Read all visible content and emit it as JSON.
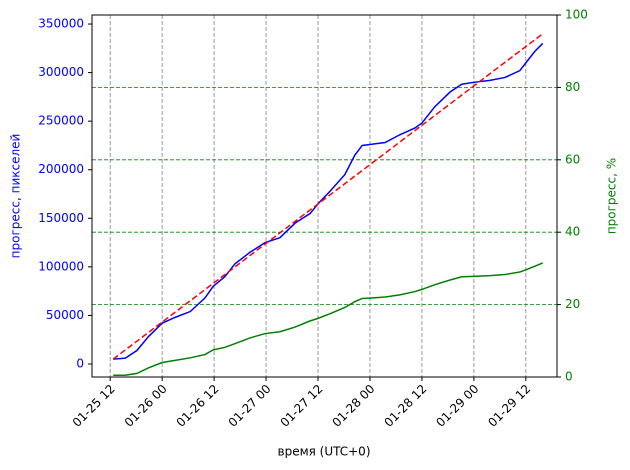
{
  "chart_data": {
    "type": "line",
    "xlabel": "время (UTC+0)",
    "ylabel": "прогресс, пикселей",
    "y2label": "прогресс, %",
    "ylabel_color": "blue",
    "y2label_color": "green",
    "xlim": [
      7.8,
      115.2
    ],
    "xticks": [
      {
        "value": 12,
        "label": "01-25 12"
      },
      {
        "value": 24,
        "label": "01-26 00"
      },
      {
        "value": 36,
        "label": "01-26 12"
      },
      {
        "value": 48,
        "label": "01-27 00"
      },
      {
        "value": 60,
        "label": "01-27 12"
      },
      {
        "value": 72,
        "label": "01-28 00"
      },
      {
        "value": 84,
        "label": "01-28 12"
      },
      {
        "value": 96,
        "label": "01-29 00"
      },
      {
        "value": 108,
        "label": "01-29 12"
      }
    ],
    "ylim": [
      -13400,
      359300
    ],
    "yticks": [
      0,
      50000,
      100000,
      150000,
      200000,
      250000,
      300000,
      350000
    ],
    "y2lim": [
      0,
      100
    ],
    "y2ticks": [
      0,
      20,
      40,
      60,
      80,
      100
    ],
    "x_grid_color": "gray",
    "y2_grid_color": "green",
    "series": [
      {
        "color": "blue",
        "dashed": false,
        "x": [
          12.7,
          15.5,
          18.2,
          20.8,
          24,
          27,
          30.5,
          33.9,
          35.8,
          38.5,
          40.8,
          44.3,
          47.8,
          51.2,
          54.7,
          58.2,
          60,
          62.8,
          66.2,
          68.5,
          70.2,
          72,
          75.5,
          78.9,
          82.4,
          84,
          87,
          90.5,
          93.2,
          96,
          99.7,
          103.2,
          106.6,
          108,
          110.1,
          111.9
        ],
        "values": [
          5000,
          6000,
          14000,
          28000,
          42000,
          48000,
          54000,
          68000,
          80000,
          90000,
          103000,
          115000,
          125000,
          130000,
          145000,
          155000,
          165000,
          178000,
          195000,
          215000,
          225000,
          226000,
          228000,
          236000,
          243000,
          248000,
          265000,
          280000,
          288000,
          290000,
          292000,
          295000,
          302000,
          310000,
          322000,
          330000
        ]
      },
      {
        "color": "red",
        "dashed": true,
        "x": [
          12.7,
          111.9
        ],
        "values": [
          5000,
          340000
        ]
      },
      {
        "color": "green",
        "dashed": false,
        "axis": "y2",
        "x": [
          12.7,
          15.5,
          18.2,
          20.8,
          24,
          27,
          30.5,
          33.9,
          35.8,
          38.5,
          40.8,
          44.3,
          47.8,
          51.2,
          54.7,
          58.2,
          60,
          62.8,
          66.2,
          68.5,
          70.2,
          72,
          75.5,
          78.9,
          82.4,
          84,
          87,
          90.5,
          93.2,
          96,
          99.7,
          103.2,
          106.6,
          108,
          110.1,
          111.9
        ],
        "values": [
          0.5,
          0.5,
          1,
          2.5,
          4,
          4.6,
          5.3,
          6.2,
          7.5,
          8.2,
          9.2,
          10.8,
          12,
          12.5,
          13.8,
          15.5,
          16.2,
          17.5,
          19.2,
          20.8,
          21.7,
          21.8,
          22.1,
          22.7,
          23.6,
          24.2,
          25.5,
          26.8,
          27.7,
          27.8,
          28,
          28.3,
          29,
          29.6,
          30.6,
          31.5
        ]
      }
    ]
  }
}
